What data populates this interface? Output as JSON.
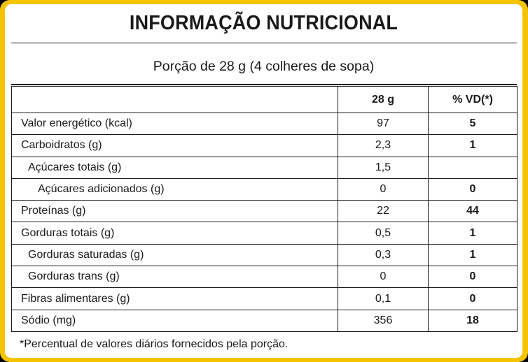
{
  "title": "INFORMAÇÃO NUTRICIONAL",
  "portion": "Porção de 28 g (4 colheres de sopa)",
  "table": {
    "headers": {
      "blank": "",
      "quantity": "28 g",
      "vd": "% VD(*)"
    },
    "rows": [
      {
        "label": "Valor energético (kcal)",
        "indent": 0,
        "quantity": "97",
        "vd": "5"
      },
      {
        "label": "Carboidratos (g)",
        "indent": 0,
        "quantity": "2,3",
        "vd": "1"
      },
      {
        "label": "Açúcares totais (g)",
        "indent": 1,
        "quantity": "1,5",
        "vd": ""
      },
      {
        "label": "Açúcares adicionados (g)",
        "indent": 2,
        "quantity": "0",
        "vd": "0"
      },
      {
        "label": "Proteínas (g)",
        "indent": 0,
        "quantity": "22",
        "vd": "44"
      },
      {
        "label": "Gorduras totais (g)",
        "indent": 0,
        "quantity": "0,5",
        "vd": "1"
      },
      {
        "label": "Gorduras saturadas (g)",
        "indent": 1,
        "quantity": "0,3",
        "vd": "1"
      },
      {
        "label": "Gorduras trans (g)",
        "indent": 1,
        "quantity": "0",
        "vd": "0"
      },
      {
        "label": "Fibras alimentares (g)",
        "indent": 0,
        "quantity": "0,1",
        "vd": "0"
      },
      {
        "label": "Sódio (mg)",
        "indent": 0,
        "quantity": "356",
        "vd": "18"
      }
    ]
  },
  "footnote": "*Percentual de valores diários fornecidos pela porção.",
  "colors": {
    "border": "#f5c400",
    "background": "#000000",
    "panel": "#ffffff",
    "text": "#1a1a1a"
  }
}
